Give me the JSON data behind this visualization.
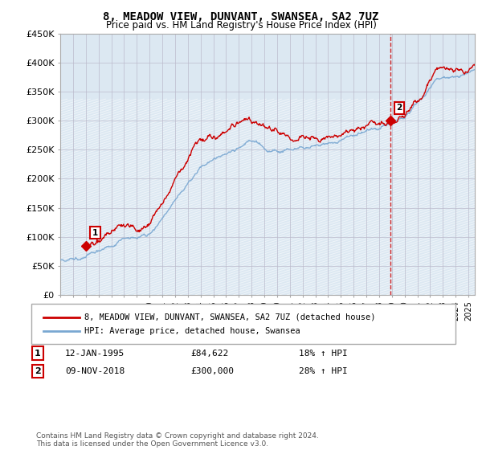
{
  "title1": "8, MEADOW VIEW, DUNVANT, SWANSEA, SA2 7UZ",
  "title2": "Price paid vs. HM Land Registry's House Price Index (HPI)",
  "ylabel_ticks": [
    "£0",
    "£50K",
    "£100K",
    "£150K",
    "£200K",
    "£250K",
    "£300K",
    "£350K",
    "£400K",
    "£450K"
  ],
  "ytick_vals": [
    0,
    50000,
    100000,
    150000,
    200000,
    250000,
    300000,
    350000,
    400000,
    450000
  ],
  "ylim": [
    0,
    450000
  ],
  "xlim_start": 1993.0,
  "xlim_end": 2025.5,
  "hpi_color": "#7aa8d2",
  "price_color": "#cc0000",
  "transaction1_date": 1995.04,
  "transaction1_price": 84622,
  "transaction2_date": 2018.87,
  "transaction2_price": 300000,
  "legend_line1": "8, MEADOW VIEW, DUNVANT, SWANSEA, SA2 7UZ (detached house)",
  "legend_line2": "HPI: Average price, detached house, Swansea",
  "annot1_date": "12-JAN-1995",
  "annot1_price": "£84,622",
  "annot1_hpi": "18% ↑ HPI",
  "annot2_date": "09-NOV-2018",
  "annot2_price": "£300,000",
  "annot2_hpi": "28% ↑ HPI",
  "footer": "Contains HM Land Registry data © Crown copyright and database right 2024.\nThis data is licensed under the Open Government Licence v3.0.",
  "grid_color": "#bbbbcc",
  "plot_bg": "#dce8f2",
  "hatch_color": "#c8d8e8"
}
